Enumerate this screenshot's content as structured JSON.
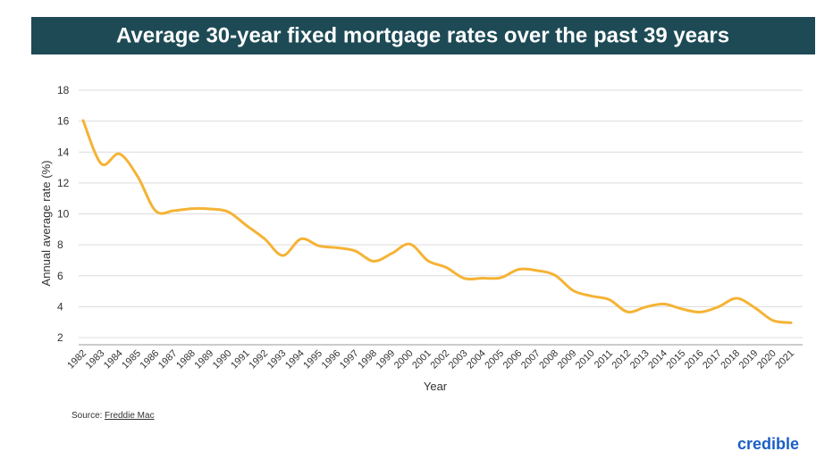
{
  "chart_data": {
    "type": "line",
    "title": "Average 30-year fixed mortgage rates over the past 39 years",
    "x_label": "Year",
    "y_label": "Annual average rate (%)",
    "categories": [
      "1982",
      "1983",
      "1984",
      "1985",
      "1986",
      "1987",
      "1988",
      "1989",
      "1990",
      "1991",
      "1992",
      "1993",
      "1994",
      "1995",
      "1996",
      "1997",
      "1998",
      "1999",
      "2000",
      "2001",
      "2002",
      "2003",
      "2004",
      "2005",
      "2006",
      "2007",
      "2008",
      "2009",
      "2010",
      "2011",
      "2012",
      "2013",
      "2014",
      "2015",
      "2016",
      "2017",
      "2018",
      "2019",
      "2020",
      "2021"
    ],
    "values": [
      16.04,
      13.24,
      13.88,
      12.43,
      10.19,
      10.21,
      10.34,
      10.32,
      10.13,
      9.25,
      8.39,
      7.31,
      8.38,
      7.93,
      7.81,
      7.6,
      6.94,
      7.44,
      8.05,
      6.97,
      6.54,
      5.83,
      5.84,
      5.87,
      6.41,
      6.34,
      6.03,
      5.04,
      4.69,
      4.45,
      3.66,
      3.98,
      4.17,
      3.85,
      3.65,
      3.99,
      4.54,
      3.94,
      3.11,
      2.96
    ],
    "color": "#f5b335",
    "ylim": [
      2,
      18
    ],
    "yticks": [
      2,
      4,
      6,
      8,
      10,
      12,
      14,
      16,
      18
    ],
    "grid": true,
    "source_label": "Source:",
    "source_link": "Freddie Mac",
    "brand": "credible"
  }
}
